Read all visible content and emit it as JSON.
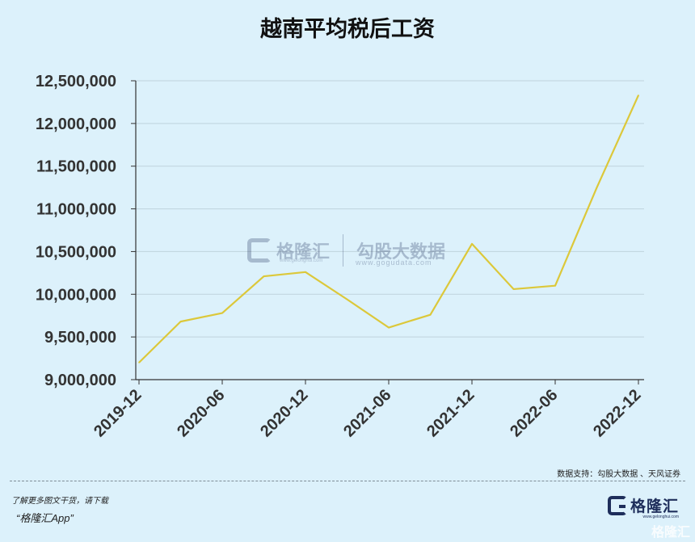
{
  "chart_data": {
    "type": "line",
    "title": "越南平均税后工资",
    "xlabel": "",
    "ylabel": "",
    "ylim": [
      9000000,
      12500000
    ],
    "yticks": [
      9000000,
      9500000,
      10000000,
      10500000,
      11000000,
      11500000,
      12000000,
      12500000
    ],
    "ytick_labels": [
      "9,000,000",
      "9,500,000",
      "10,000,000",
      "10,500,000",
      "11,000,000",
      "11,500,000",
      "12,000,000",
      "12,500,000"
    ],
    "xtick_labels": [
      "2019-12",
      "2020-06",
      "2020-12",
      "2021-06",
      "2021-12",
      "2022-06",
      "2022-12"
    ],
    "x": [
      "2019-12",
      "2020-03",
      "2020-06",
      "2020-09",
      "2020-12",
      "2021-03",
      "2021-06",
      "2021-09",
      "2021-12",
      "2022-03",
      "2022-06",
      "2022-09",
      "2022-12"
    ],
    "series": [
      {
        "color": "#dcc83a",
        "values": [
          9200000,
          9680000,
          9780000,
          10210000,
          10260000,
          9940000,
          9610000,
          9760000,
          10590000,
          10060000,
          10100000,
          11250000,
          12330000
        ]
      }
    ],
    "grid": true,
    "legend": "none"
  },
  "source_text": "数据支持：勾股大数据 、天风证券",
  "footer": {
    "line1": "了解更多图文干货，请下载",
    "line2": "“格隆汇App”"
  },
  "logo": {
    "name": "格隆汇",
    "url": "www.gelonghui.com"
  },
  "watermark": {
    "brand": "格隆汇",
    "brand_url": "www.gelonghui.com",
    "data_brand": "勾股大数据",
    "data_url": "www.gogudata.com"
  },
  "corner_watermark": "格隆汇",
  "colors": {
    "background": "#dcf1fb",
    "line": "#dcc83a",
    "grid": "#bfd3dd",
    "axis": "#333333",
    "brand": "#1e2e5b"
  }
}
